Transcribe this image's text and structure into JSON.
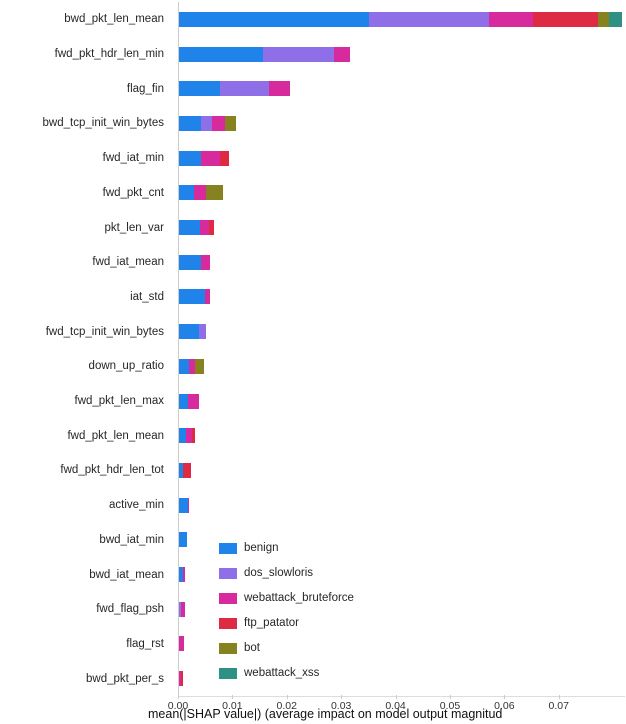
{
  "chart_data": {
    "type": "bar",
    "orientation": "horizontal",
    "stacked": true,
    "title": "",
    "xlabel": "mean(|SHAP value|) (average impact on model output magnitud",
    "ylabel": "",
    "xlim": [
      0,
      0.082
    ],
    "grid": false,
    "legend_position": "inside lower-left",
    "x_tick_values": [
      0.0,
      0.01,
      0.02,
      0.03,
      0.04,
      0.05,
      0.06,
      0.07
    ],
    "x_tick_labels": [
      "0.00",
      "0.01",
      "0.02",
      "0.03",
      "0.04",
      "0.05",
      "0.06",
      "0.07"
    ],
    "categories": [
      "bwd_pkt_len_mean",
      "fwd_pkt_hdr_len_min",
      "flag_fin",
      "bwd_tcp_init_win_bytes",
      "fwd_iat_min",
      "fwd_pkt_cnt",
      "pkt_len_var",
      "fwd_iat_mean",
      "iat_std",
      "fwd_tcp_init_win_bytes",
      "down_up_ratio",
      "fwd_pkt_len_max",
      "fwd_pkt_len_mean",
      "fwd_pkt_hdr_len_tot",
      "active_min",
      "bwd_iat_min",
      "bwd_iat_mean",
      "fwd_flag_psh",
      "flag_rst",
      "bwd_pkt_per_s"
    ],
    "series": [
      {
        "name": "benign",
        "color": "#1f83ea",
        "values": [
          0.035,
          0.0155,
          0.0075,
          0.004,
          0.004,
          0.0028,
          0.0038,
          0.004,
          0.0047,
          0.0037,
          0.0018,
          0.0017,
          0.0013,
          0.0008,
          0.0016,
          0.0014,
          0.0008,
          0.0,
          0.0,
          0.0
        ]
      },
      {
        "name": "dos_slowloris",
        "color": "#8f6fe8",
        "values": [
          0.022,
          0.013,
          0.009,
          0.002,
          0.0,
          0.0,
          0.0,
          0.0,
          0.0,
          0.0012,
          0.0,
          0.0,
          0.0,
          0.0,
          0.0,
          0.0,
          0.0,
          0.0004,
          0.0,
          0.0
        ]
      },
      {
        "name": "webattack_bruteforce",
        "color": "#d62a9d",
        "values": [
          0.008,
          0.003,
          0.004,
          0.0025,
          0.0035,
          0.0022,
          0.0018,
          0.0017,
          0.001,
          0.0,
          0.0012,
          0.002,
          0.001,
          0.0,
          0.0002,
          0.0,
          0.0003,
          0.0007,
          0.0009,
          0.0003
        ]
      },
      {
        "name": "ftp_patator",
        "color": "#de2a43",
        "values": [
          0.012,
          0.0,
          0.0,
          0.0,
          0.0017,
          0.0,
          0.0008,
          0.0,
          0.0,
          0.0,
          0.0,
          0.0,
          0.0006,
          0.0014,
          0.0,
          0.0,
          0.0,
          0.0,
          0.0,
          0.0004
        ]
      },
      {
        "name": "bot",
        "color": "#85821f",
        "values": [
          0.002,
          0.0,
          0.0,
          0.002,
          0.0,
          0.003,
          0.0,
          0.0,
          0.0,
          0.0,
          0.0016,
          0.0,
          0.0,
          0.0,
          0.0,
          0.0,
          0.0,
          0.0,
          0.0,
          0.0
        ]
      },
      {
        "name": "webattack_xss",
        "color": "#2f9184",
        "values": [
          0.0025,
          0.0,
          0.0,
          0.0,
          0.0,
          0.0,
          0.0,
          0.0,
          0.0,
          0.0,
          0.0,
          0.0,
          0.0,
          0.0,
          0.0,
          0.0,
          0.0,
          0.0,
          0.0,
          0.0
        ]
      }
    ],
    "legend_entries": [
      "benign",
      "dos_slowloris",
      "webattack_bruteforce",
      "ftp_patator",
      "bot",
      "webattack_xss"
    ],
    "axis_color": "#cccccc"
  }
}
